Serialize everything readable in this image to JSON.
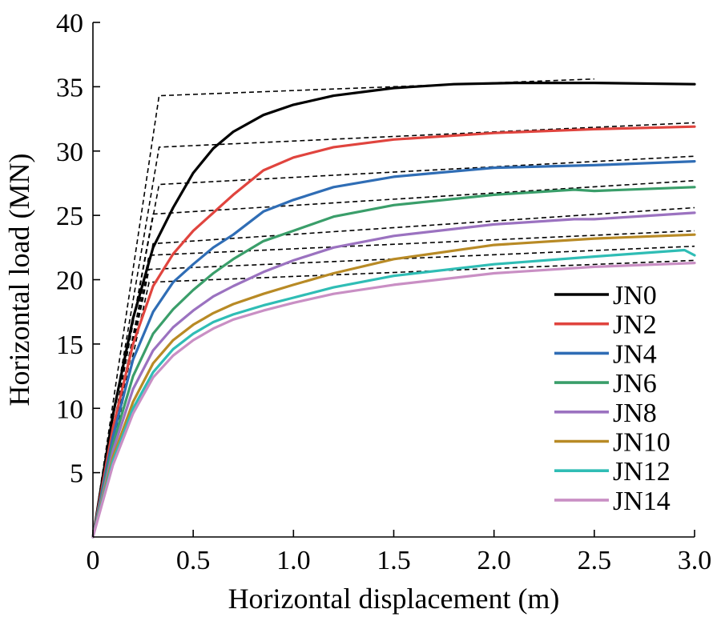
{
  "chart_data": {
    "type": "line",
    "title": "",
    "xlabel": "Horizontal displacement (m)",
    "ylabel": "Horizontal load (MN)",
    "xlim": [
      0,
      3.0
    ],
    "ylim": [
      0,
      40
    ],
    "xticks": [
      "0",
      "0.5",
      "1.0",
      "1.5",
      "2.0",
      "2.5",
      "3.0"
    ],
    "yticks": [
      "5",
      "10",
      "15",
      "20",
      "25",
      "30",
      "35",
      "40"
    ],
    "xtick_values": [
      0,
      0.5,
      1.0,
      1.5,
      2.0,
      2.5,
      3.0
    ],
    "ytick_values": [
      5,
      10,
      15,
      20,
      25,
      30,
      35,
      40
    ],
    "grid": false,
    "legend_position": "bottom-right",
    "series": [
      {
        "name": "JN0",
        "color": "#000000",
        "x": [
          0,
          0.1,
          0.2,
          0.3,
          0.4,
          0.5,
          0.6,
          0.7,
          0.85,
          1.0,
          1.2,
          1.5,
          1.8,
          2.1,
          2.5,
          3.0
        ],
        "y": [
          0,
          9.5,
          17.0,
          22.5,
          25.6,
          28.3,
          30.2,
          31.5,
          32.8,
          33.6,
          34.3,
          34.9,
          35.2,
          35.3,
          35.3,
          35.2
        ]
      },
      {
        "name": "JN2",
        "color": "#e0443e",
        "x": [
          0,
          0.1,
          0.2,
          0.3,
          0.4,
          0.5,
          0.6,
          0.7,
          0.85,
          1.0,
          1.2,
          1.5,
          2.0,
          2.5,
          3.0
        ],
        "y": [
          0,
          8.5,
          15.0,
          19.5,
          22.0,
          23.8,
          25.2,
          26.6,
          28.5,
          29.5,
          30.3,
          30.9,
          31.4,
          31.7,
          31.9
        ]
      },
      {
        "name": "JN4",
        "color": "#2f6db5",
        "x": [
          0,
          0.1,
          0.2,
          0.3,
          0.4,
          0.5,
          0.6,
          0.7,
          0.85,
          1.0,
          1.2,
          1.5,
          2.0,
          2.5,
          3.0
        ],
        "y": [
          0,
          7.8,
          13.8,
          17.5,
          19.8,
          21.2,
          22.5,
          23.5,
          25.3,
          26.2,
          27.2,
          28.0,
          28.7,
          28.9,
          29.2
        ]
      },
      {
        "name": "JN6",
        "color": "#3a9e6a",
        "x": [
          0,
          0.1,
          0.2,
          0.3,
          0.4,
          0.5,
          0.6,
          0.7,
          0.85,
          1.0,
          1.2,
          1.5,
          2.0,
          2.4,
          2.5,
          3.0
        ],
        "y": [
          0,
          7.2,
          12.5,
          15.8,
          17.7,
          19.2,
          20.5,
          21.6,
          23.0,
          23.8,
          24.9,
          25.8,
          26.6,
          27.0,
          26.9,
          27.2
        ]
      },
      {
        "name": "JN8",
        "color": "#9b72c0",
        "x": [
          0,
          0.1,
          0.2,
          0.3,
          0.4,
          0.5,
          0.6,
          0.7,
          0.85,
          1.0,
          1.2,
          1.5,
          2.0,
          2.4,
          2.5,
          3.0
        ],
        "y": [
          0,
          6.7,
          11.5,
          14.5,
          16.3,
          17.6,
          18.7,
          19.5,
          20.6,
          21.5,
          22.5,
          23.4,
          24.3,
          24.7,
          24.7,
          25.2
        ]
      },
      {
        "name": "JN10",
        "color": "#b88a25",
        "x": [
          0,
          0.1,
          0.2,
          0.3,
          0.4,
          0.5,
          0.6,
          0.7,
          0.85,
          1.0,
          1.2,
          1.5,
          2.0,
          2.5,
          3.0
        ],
        "y": [
          0,
          6.2,
          10.5,
          13.5,
          15.3,
          16.5,
          17.4,
          18.1,
          18.9,
          19.6,
          20.5,
          21.6,
          22.7,
          23.2,
          23.5
        ]
      },
      {
        "name": "JN12",
        "color": "#2fbdb5",
        "x": [
          0,
          0.1,
          0.2,
          0.3,
          0.4,
          0.5,
          0.6,
          0.7,
          0.85,
          1.0,
          1.2,
          1.5,
          2.0,
          2.5,
          2.95,
          3.0
        ],
        "y": [
          0,
          5.9,
          10.0,
          12.8,
          14.6,
          15.8,
          16.7,
          17.3,
          18.0,
          18.6,
          19.4,
          20.3,
          21.2,
          21.8,
          22.3,
          21.9
        ]
      },
      {
        "name": "JN14",
        "color": "#c98fc4",
        "x": [
          0,
          0.1,
          0.2,
          0.3,
          0.4,
          0.5,
          0.6,
          0.7,
          0.85,
          1.0,
          1.2,
          1.5,
          2.0,
          2.5,
          3.0
        ],
        "y": [
          0,
          5.6,
          9.6,
          12.4,
          14.1,
          15.3,
          16.2,
          16.9,
          17.6,
          18.2,
          18.9,
          19.6,
          20.5,
          21.0,
          21.3
        ]
      }
    ],
    "bilinear_fits": [
      {
        "series": "JN0",
        "x": [
          0,
          0.33,
          2.5
        ],
        "y": [
          0,
          34.3,
          35.6
        ]
      },
      {
        "series": "JN2",
        "x": [
          0,
          0.33,
          3.0
        ],
        "y": [
          0,
          30.3,
          32.2
        ]
      },
      {
        "series": "JN4",
        "x": [
          0,
          0.33,
          3.0
        ],
        "y": [
          0,
          27.4,
          29.6
        ]
      },
      {
        "series": "JN6",
        "x": [
          0,
          0.3,
          3.0
        ],
        "y": [
          0,
          25.1,
          27.7
        ]
      },
      {
        "series": "JN8",
        "x": [
          0,
          0.3,
          3.0
        ],
        "y": [
          0,
          22.8,
          25.6
        ]
      },
      {
        "series": "JN10",
        "x": [
          0,
          0.28,
          3.0
        ],
        "y": [
          0,
          21.9,
          23.8
        ]
      },
      {
        "series": "JN12",
        "x": [
          0,
          0.28,
          3.0
        ],
        "y": [
          0,
          20.8,
          22.6
        ]
      },
      {
        "series": "JN14",
        "x": [
          0,
          0.28,
          3.0
        ],
        "y": [
          0,
          19.8,
          21.5
        ]
      }
    ]
  }
}
